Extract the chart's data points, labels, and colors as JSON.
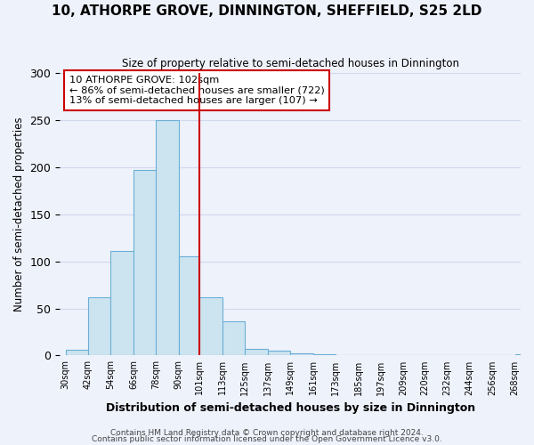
{
  "title": "10, ATHORPE GROVE, DINNINGTON, SHEFFIELD, S25 2LD",
  "subtitle": "Size of property relative to semi-detached houses in Dinnington",
  "xlabel": "Distribution of semi-detached houses by size in Dinnington",
  "ylabel": "Number of semi-detached properties",
  "bar_heights": [
    6,
    62,
    111,
    197,
    250,
    105,
    62,
    36,
    7,
    5,
    2,
    1,
    0,
    0,
    0,
    0,
    0,
    0,
    0,
    0,
    1
  ],
  "bin_edges": [
    30,
    42,
    54,
    66,
    78,
    90,
    101,
    113,
    125,
    137,
    149,
    161,
    173,
    185,
    197,
    209,
    220,
    232,
    244,
    256,
    268
  ],
  "tick_labels": [
    "30sqm",
    "42sqm",
    "54sqm",
    "66sqm",
    "78sqm",
    "90sqm",
    "101sqm",
    "113sqm",
    "125sqm",
    "137sqm",
    "149sqm",
    "161sqm",
    "173sqm",
    "185sqm",
    "197sqm",
    "209sqm",
    "220sqm",
    "232sqm",
    "244sqm",
    "256sqm",
    "268sqm"
  ],
  "bar_color": "#cce4f0",
  "bar_edge_color": "#6baed6",
  "vline_x": 101,
  "vline_color": "#cc0000",
  "ylim": [
    0,
    300
  ],
  "yticks": [
    0,
    50,
    100,
    150,
    200,
    250,
    300
  ],
  "annotation_title": "10 ATHORPE GROVE: 102sqm",
  "annotation_line1": "← 86% of semi-detached houses are smaller (722)",
  "annotation_line2": "13% of semi-detached houses are larger (107) →",
  "annotation_box_color": "#ffffff",
  "annotation_box_edge_color": "#cc0000",
  "footer_line1": "Contains HM Land Registry data © Crown copyright and database right 2024.",
  "footer_line2": "Contains public sector information licensed under the Open Government Licence v3.0.",
  "background_color": "#eef2fb",
  "grid_color": "#d0d8ee"
}
